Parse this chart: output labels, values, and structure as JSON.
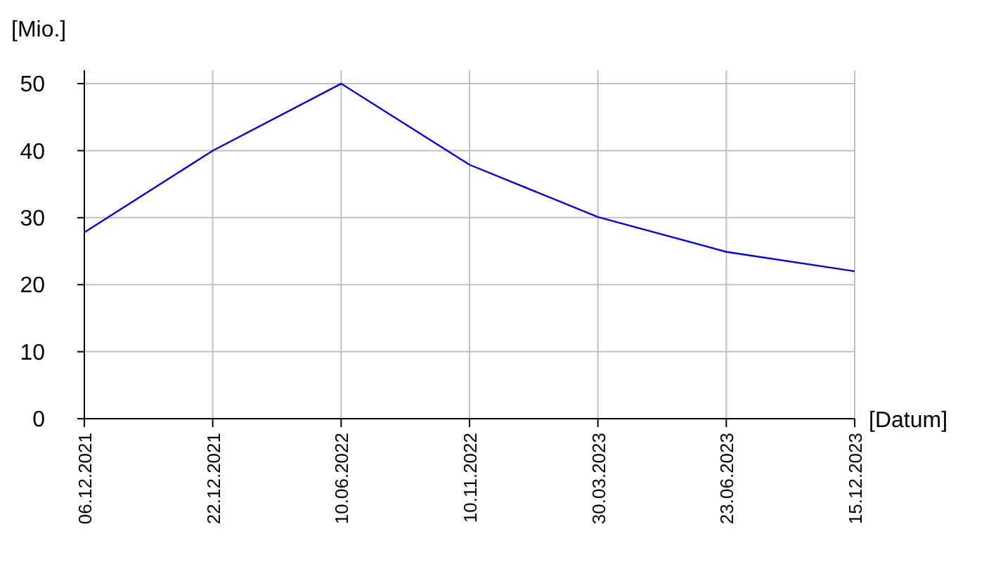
{
  "chart_data": {
    "type": "line",
    "ylabel": "[Mio.]",
    "xlabel": "[Datum]",
    "categories": [
      "06.12.2021",
      "22.12.2021",
      "10.06.2022",
      "10.11.2022",
      "30.03.2023",
      "23.06.2023",
      "15.12.2023"
    ],
    "series": [
      {
        "color": "#0000ee",
        "values": [
          27.8,
          40,
          50,
          37.9,
          30.1,
          24.9,
          22
        ]
      }
    ],
    "ylim": [
      0,
      52
    ],
    "yticks": [
      0,
      10,
      20,
      30,
      40,
      50
    ],
    "grid": true,
    "marker": "none",
    "line_style": "solid"
  }
}
